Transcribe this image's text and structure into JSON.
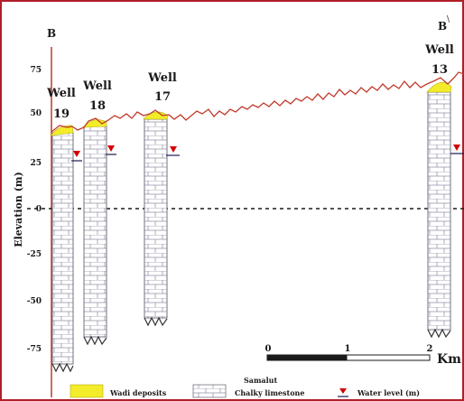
{
  "section": {
    "start_label": "B",
    "end_label": "B",
    "end_label_mark": "\\"
  },
  "axis": {
    "title": "Elevation (m)",
    "unit": "m",
    "ticks": [
      "75",
      "50",
      "25",
      "0",
      "-25",
      "-50",
      "-75"
    ]
  },
  "wells": [
    {
      "id": "well-19",
      "word": "Well",
      "number": "19"
    },
    {
      "id": "well-18",
      "word": "Well",
      "number": "18"
    },
    {
      "id": "well-17",
      "word": "Well",
      "number": "17"
    },
    {
      "id": "well-13",
      "word": "Well",
      "number": "13"
    }
  ],
  "scale_bar": {
    "ticks": [
      "0",
      "1",
      "2"
    ],
    "unit": "Km"
  },
  "legend": {
    "wadi": "Wadi deposits",
    "samalut_line1": "Samalut",
    "samalut_line2": "Chalky limestone",
    "water": "Water level (m)"
  },
  "colors": {
    "surface": "#c0392b",
    "wadi": "#f3ec2a",
    "water_marker": "#d40000",
    "border": "#b0202a"
  }
}
